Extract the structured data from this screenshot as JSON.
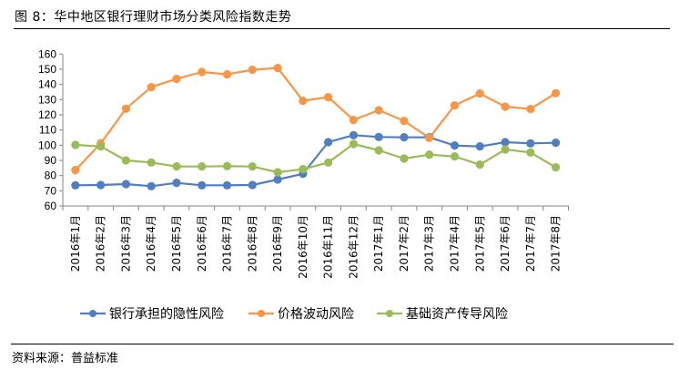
{
  "header": {
    "title": "图 8：华中地区银行理财市场分类风险指数走势"
  },
  "footer": {
    "source": "资料来源：普益标准"
  },
  "chart_data": {
    "type": "line",
    "title": "华中地区银行理财市场分类风险指数走势",
    "xlabel": "",
    "ylabel": "",
    "ylim": [
      60,
      160
    ],
    "yticks": [
      60,
      70,
      80,
      90,
      100,
      110,
      120,
      130,
      140,
      150,
      160
    ],
    "grid": false,
    "legend_position": "bottom",
    "categories": [
      "2016年1月",
      "2016年2月",
      "2016年3月",
      "2016年4月",
      "2016年5月",
      "2016年6月",
      "2016年7月",
      "2016年8月",
      "2016年9月",
      "2016年10月",
      "2016年11月",
      "2016年12月",
      "2017年1月",
      "2017年2月",
      "2017年3月",
      "2017年4月",
      "2017年5月",
      "2017年6月",
      "2017年7月",
      "2017年8月"
    ],
    "series": [
      {
        "name": "银行承担的隐性风险",
        "color": "#4f7fbf",
        "values": [
          73.6,
          73.8,
          74.4,
          73.0,
          75.2,
          73.6,
          73.6,
          73.8,
          77.4,
          81.2,
          102.0,
          106.6,
          105.4,
          105.2,
          105.2,
          99.8,
          99.2,
          102.0,
          101.2,
          101.6
        ]
      },
      {
        "name": "价格波动风险",
        "color": "#f79646",
        "values": [
          83.6,
          101.2,
          124.0,
          138.2,
          143.6,
          148.2,
          146.6,
          149.6,
          150.8,
          129.2,
          131.6,
          116.6,
          123.0,
          116.0,
          104.8,
          126.2,
          134.0,
          125.4,
          123.8,
          134.2
        ]
      },
      {
        "name": "基础资产传导风险",
        "color": "#9bbb59",
        "values": [
          100.2,
          99.2,
          90.0,
          88.6,
          86.0,
          86.0,
          86.2,
          86.0,
          82.2,
          84.2,
          88.6,
          100.8,
          96.6,
          91.2,
          93.8,
          92.6,
          87.2,
          97.2,
          95.2,
          85.4
        ]
      }
    ]
  }
}
